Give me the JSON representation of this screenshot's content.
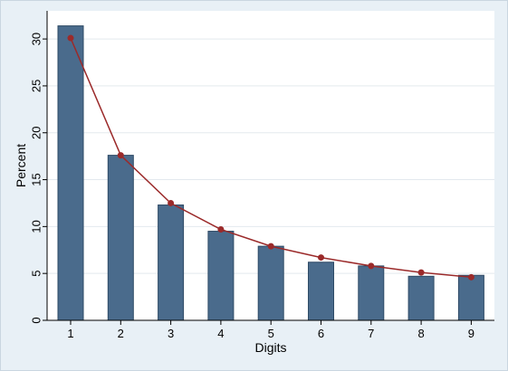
{
  "chart_data": {
    "type": "bar",
    "categories": [
      "1",
      "2",
      "3",
      "4",
      "5",
      "6",
      "7",
      "8",
      "9"
    ],
    "series": [
      {
        "values": [
          31.4,
          17.6,
          12.3,
          9.5,
          7.9,
          6.2,
          5.8,
          4.7,
          4.8
        ]
      },
      {
        "type": "line",
        "values": [
          30.1,
          17.6,
          12.5,
          9.7,
          7.9,
          6.7,
          5.8,
          5.1,
          4.6
        ]
      }
    ],
    "xlabel": "Digits",
    "ylabel": "Percent",
    "ylim": [
      0,
      33
    ],
    "yticks": [
      0,
      5,
      10,
      15,
      20,
      25,
      30
    ],
    "grid": true,
    "colors": {
      "bars": "#4a6b8c",
      "bar_edge": "#2f4b66",
      "line": "#9b2a2a",
      "grid": "#e3e9ee",
      "plot_bg": "#ffffff",
      "outer_bg": "#e8f0f6"
    }
  }
}
